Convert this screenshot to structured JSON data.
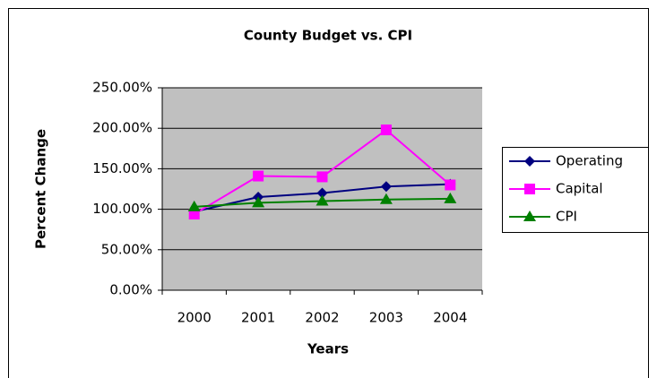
{
  "chart_data": {
    "type": "line",
    "title": "County Budget vs. CPI",
    "xlabel": "Years",
    "ylabel": "Percent Change",
    "categories": [
      "2000",
      "2001",
      "2002",
      "2003",
      "2004"
    ],
    "series": [
      {
        "name": "Operating",
        "color": "#000080",
        "marker": "diamond",
        "values": [
          97,
          115,
          120,
          128,
          131
        ]
      },
      {
        "name": "Capital",
        "color": "#ff00ff",
        "marker": "square",
        "values": [
          94,
          141,
          140,
          198,
          130
        ]
      },
      {
        "name": "CPI",
        "color": "#008000",
        "marker": "triangle",
        "values": [
          103,
          108,
          110,
          112,
          113
        ]
      }
    ],
    "ylim": [
      0,
      250
    ],
    "yticks": [
      {
        "value": 0,
        "label": "0.00%"
      },
      {
        "value": 50,
        "label": "50.00%"
      },
      {
        "value": 100,
        "label": "100.00%"
      },
      {
        "value": 150,
        "label": "150.00%"
      },
      {
        "value": 200,
        "label": "200.00%"
      },
      {
        "value": 250,
        "label": "250.00%"
      }
    ],
    "grid": true,
    "legend": "right"
  }
}
